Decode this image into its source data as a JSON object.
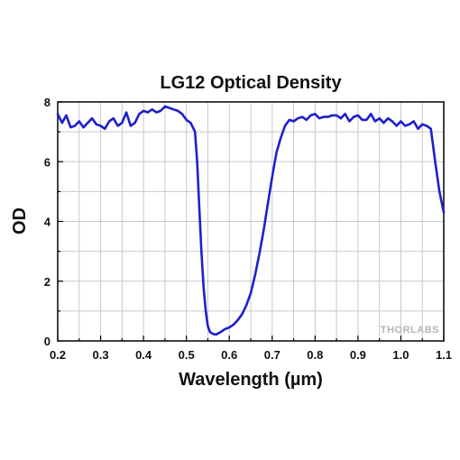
{
  "chart_data": {
    "type": "line",
    "title": "LG12 Optical Density",
    "xlabel": "Wavelength (µm)",
    "ylabel": "OD",
    "xlim": [
      0.2,
      1.1
    ],
    "ylim": [
      0,
      8
    ],
    "x_ticks": [
      "0.2",
      "0.3",
      "0.4",
      "0.5",
      "0.6",
      "0.7",
      "0.8",
      "0.9",
      "1.0",
      "1.1"
    ],
    "y_ticks": [
      "0",
      "2",
      "4",
      "6",
      "8"
    ],
    "grid": true,
    "line_color": "#1f1fcc",
    "series": [
      {
        "x": [
          0.2,
          0.21,
          0.22,
          0.23,
          0.24,
          0.25,
          0.26,
          0.27,
          0.28,
          0.29,
          0.3,
          0.31,
          0.32,
          0.33,
          0.34,
          0.35,
          0.36,
          0.37,
          0.38,
          0.39,
          0.4,
          0.41,
          0.42,
          0.43,
          0.44,
          0.45,
          0.46,
          0.47,
          0.48,
          0.49,
          0.5,
          0.51,
          0.52,
          0.525,
          0.53,
          0.535,
          0.54,
          0.545,
          0.55,
          0.555,
          0.56,
          0.565,
          0.57,
          0.58,
          0.59,
          0.6,
          0.61,
          0.62,
          0.63,
          0.64,
          0.65,
          0.66,
          0.67,
          0.68,
          0.69,
          0.7,
          0.71,
          0.72,
          0.73,
          0.74,
          0.75,
          0.76,
          0.77,
          0.78,
          0.79,
          0.8,
          0.81,
          0.82,
          0.83,
          0.84,
          0.85,
          0.86,
          0.87,
          0.88,
          0.89,
          0.9,
          0.91,
          0.92,
          0.93,
          0.94,
          0.95,
          0.96,
          0.97,
          0.98,
          0.99,
          1.0,
          1.01,
          1.02,
          1.03,
          1.04,
          1.05,
          1.06,
          1.07,
          1.08,
          1.09,
          1.1
        ],
        "y": [
          7.6,
          7.3,
          7.55,
          7.15,
          7.2,
          7.35,
          7.15,
          7.3,
          7.45,
          7.25,
          7.2,
          7.1,
          7.35,
          7.45,
          7.2,
          7.3,
          7.65,
          7.2,
          7.3,
          7.6,
          7.7,
          7.65,
          7.75,
          7.65,
          7.7,
          7.85,
          7.8,
          7.75,
          7.7,
          7.6,
          7.4,
          7.3,
          7.0,
          6.0,
          4.5,
          3.0,
          1.8,
          1.0,
          0.5,
          0.3,
          0.25,
          0.22,
          0.22,
          0.3,
          0.4,
          0.45,
          0.55,
          0.7,
          0.9,
          1.2,
          1.6,
          2.2,
          2.9,
          3.7,
          4.6,
          5.5,
          6.3,
          6.8,
          7.2,
          7.4,
          7.35,
          7.45,
          7.5,
          7.4,
          7.55,
          7.6,
          7.45,
          7.5,
          7.5,
          7.55,
          7.55,
          7.45,
          7.6,
          7.35,
          7.5,
          7.55,
          7.4,
          7.4,
          7.6,
          7.35,
          7.45,
          7.3,
          7.45,
          7.35,
          7.2,
          7.35,
          7.2,
          7.25,
          7.35,
          7.1,
          7.25,
          7.2,
          7.1,
          6.0,
          5.0,
          4.3
        ]
      }
    ],
    "watermark": "THORLABS"
  }
}
